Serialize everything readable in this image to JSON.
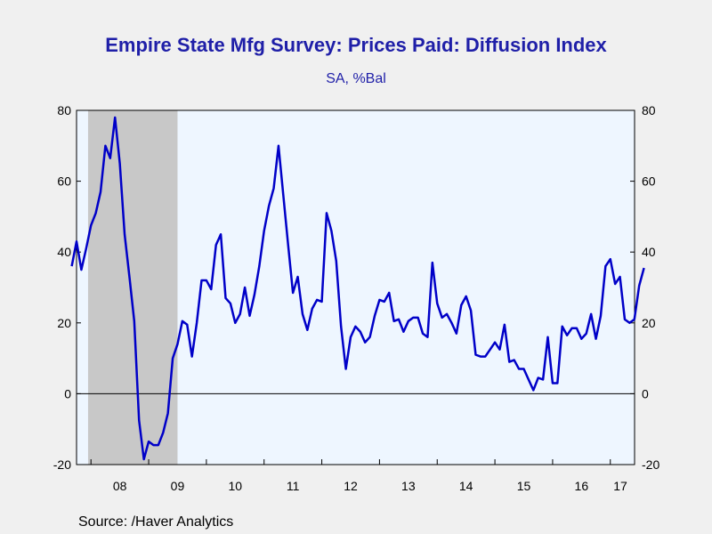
{
  "chart_data": {
    "type": "line",
    "title": "Empire State Mfg Survey: Prices Paid: Diffusion Index",
    "subtitle": "SA, %Bal",
    "source": "Source:  /Haver Analytics",
    "ylim": [
      -20,
      80
    ],
    "yticks": [
      -20,
      0,
      20,
      40,
      60,
      80
    ],
    "xlim": [
      2007.75,
      2017.42
    ],
    "xtick_labels": [
      {
        "label": "08",
        "at": 2008.5
      },
      {
        "label": "09",
        "at": 2009.5
      },
      {
        "label": "10",
        "at": 2010.5
      },
      {
        "label": "11",
        "at": 2011.5
      },
      {
        "label": "12",
        "at": 2012.5
      },
      {
        "label": "13",
        "at": 2013.5
      },
      {
        "label": "14",
        "at": 2014.5
      },
      {
        "label": "15",
        "at": 2015.5
      },
      {
        "label": "16",
        "at": 2016.5
      },
      {
        "label": "17",
        "at": 2017.5
      }
    ],
    "year_boundaries": [
      2008,
      2009,
      2010,
      2011,
      2012,
      2013,
      2014,
      2015,
      2016,
      2017
    ],
    "recession": {
      "start": 2007.95,
      "end": 2009.5
    },
    "grid": false,
    "zero_line": true,
    "colors": {
      "line": "#0000c8",
      "recession": "#c8c8c8",
      "plot_bg": "#eef6ff",
      "title": "#1f1fa8"
    },
    "series": [
      {
        "start": "2007-09",
        "values": [
          36,
          43,
          35,
          41,
          47.5,
          51,
          57,
          70,
          66.5,
          78,
          65,
          45,
          33,
          20.5,
          -7.5,
          -18.5,
          -13.5,
          -14.5,
          -14.5,
          -11,
          -5.5,
          10,
          14,
          20.5,
          19.5,
          10.5,
          20,
          32,
          32,
          29.5,
          42,
          45,
          27,
          25.5,
          20,
          22.5,
          30,
          22,
          28,
          36,
          46,
          53,
          58,
          70,
          56,
          42,
          28.5,
          33,
          22.5,
          18,
          24,
          26.5,
          26,
          51,
          46,
          37.5,
          19,
          7,
          16,
          19,
          17.5,
          14.5,
          16,
          22,
          26.5,
          26,
          28.5,
          20.5,
          21,
          17.5,
          20.5,
          21.5,
          21.5,
          17,
          16,
          37,
          25.5,
          21.5,
          22.5,
          20,
          17,
          25,
          27.5,
          23.5,
          11,
          10.5,
          10.5,
          12.5,
          14.5,
          12.5,
          19.5,
          9,
          9.5,
          7,
          7,
          4,
          1,
          4.5,
          4,
          16,
          3,
          3,
          19,
          16.5,
          18.5,
          18.5,
          15.5,
          17,
          22.5,
          15.5,
          22,
          36,
          38,
          31,
          33,
          21,
          20,
          21,
          30.5,
          35.5
        ]
      }
    ]
  }
}
